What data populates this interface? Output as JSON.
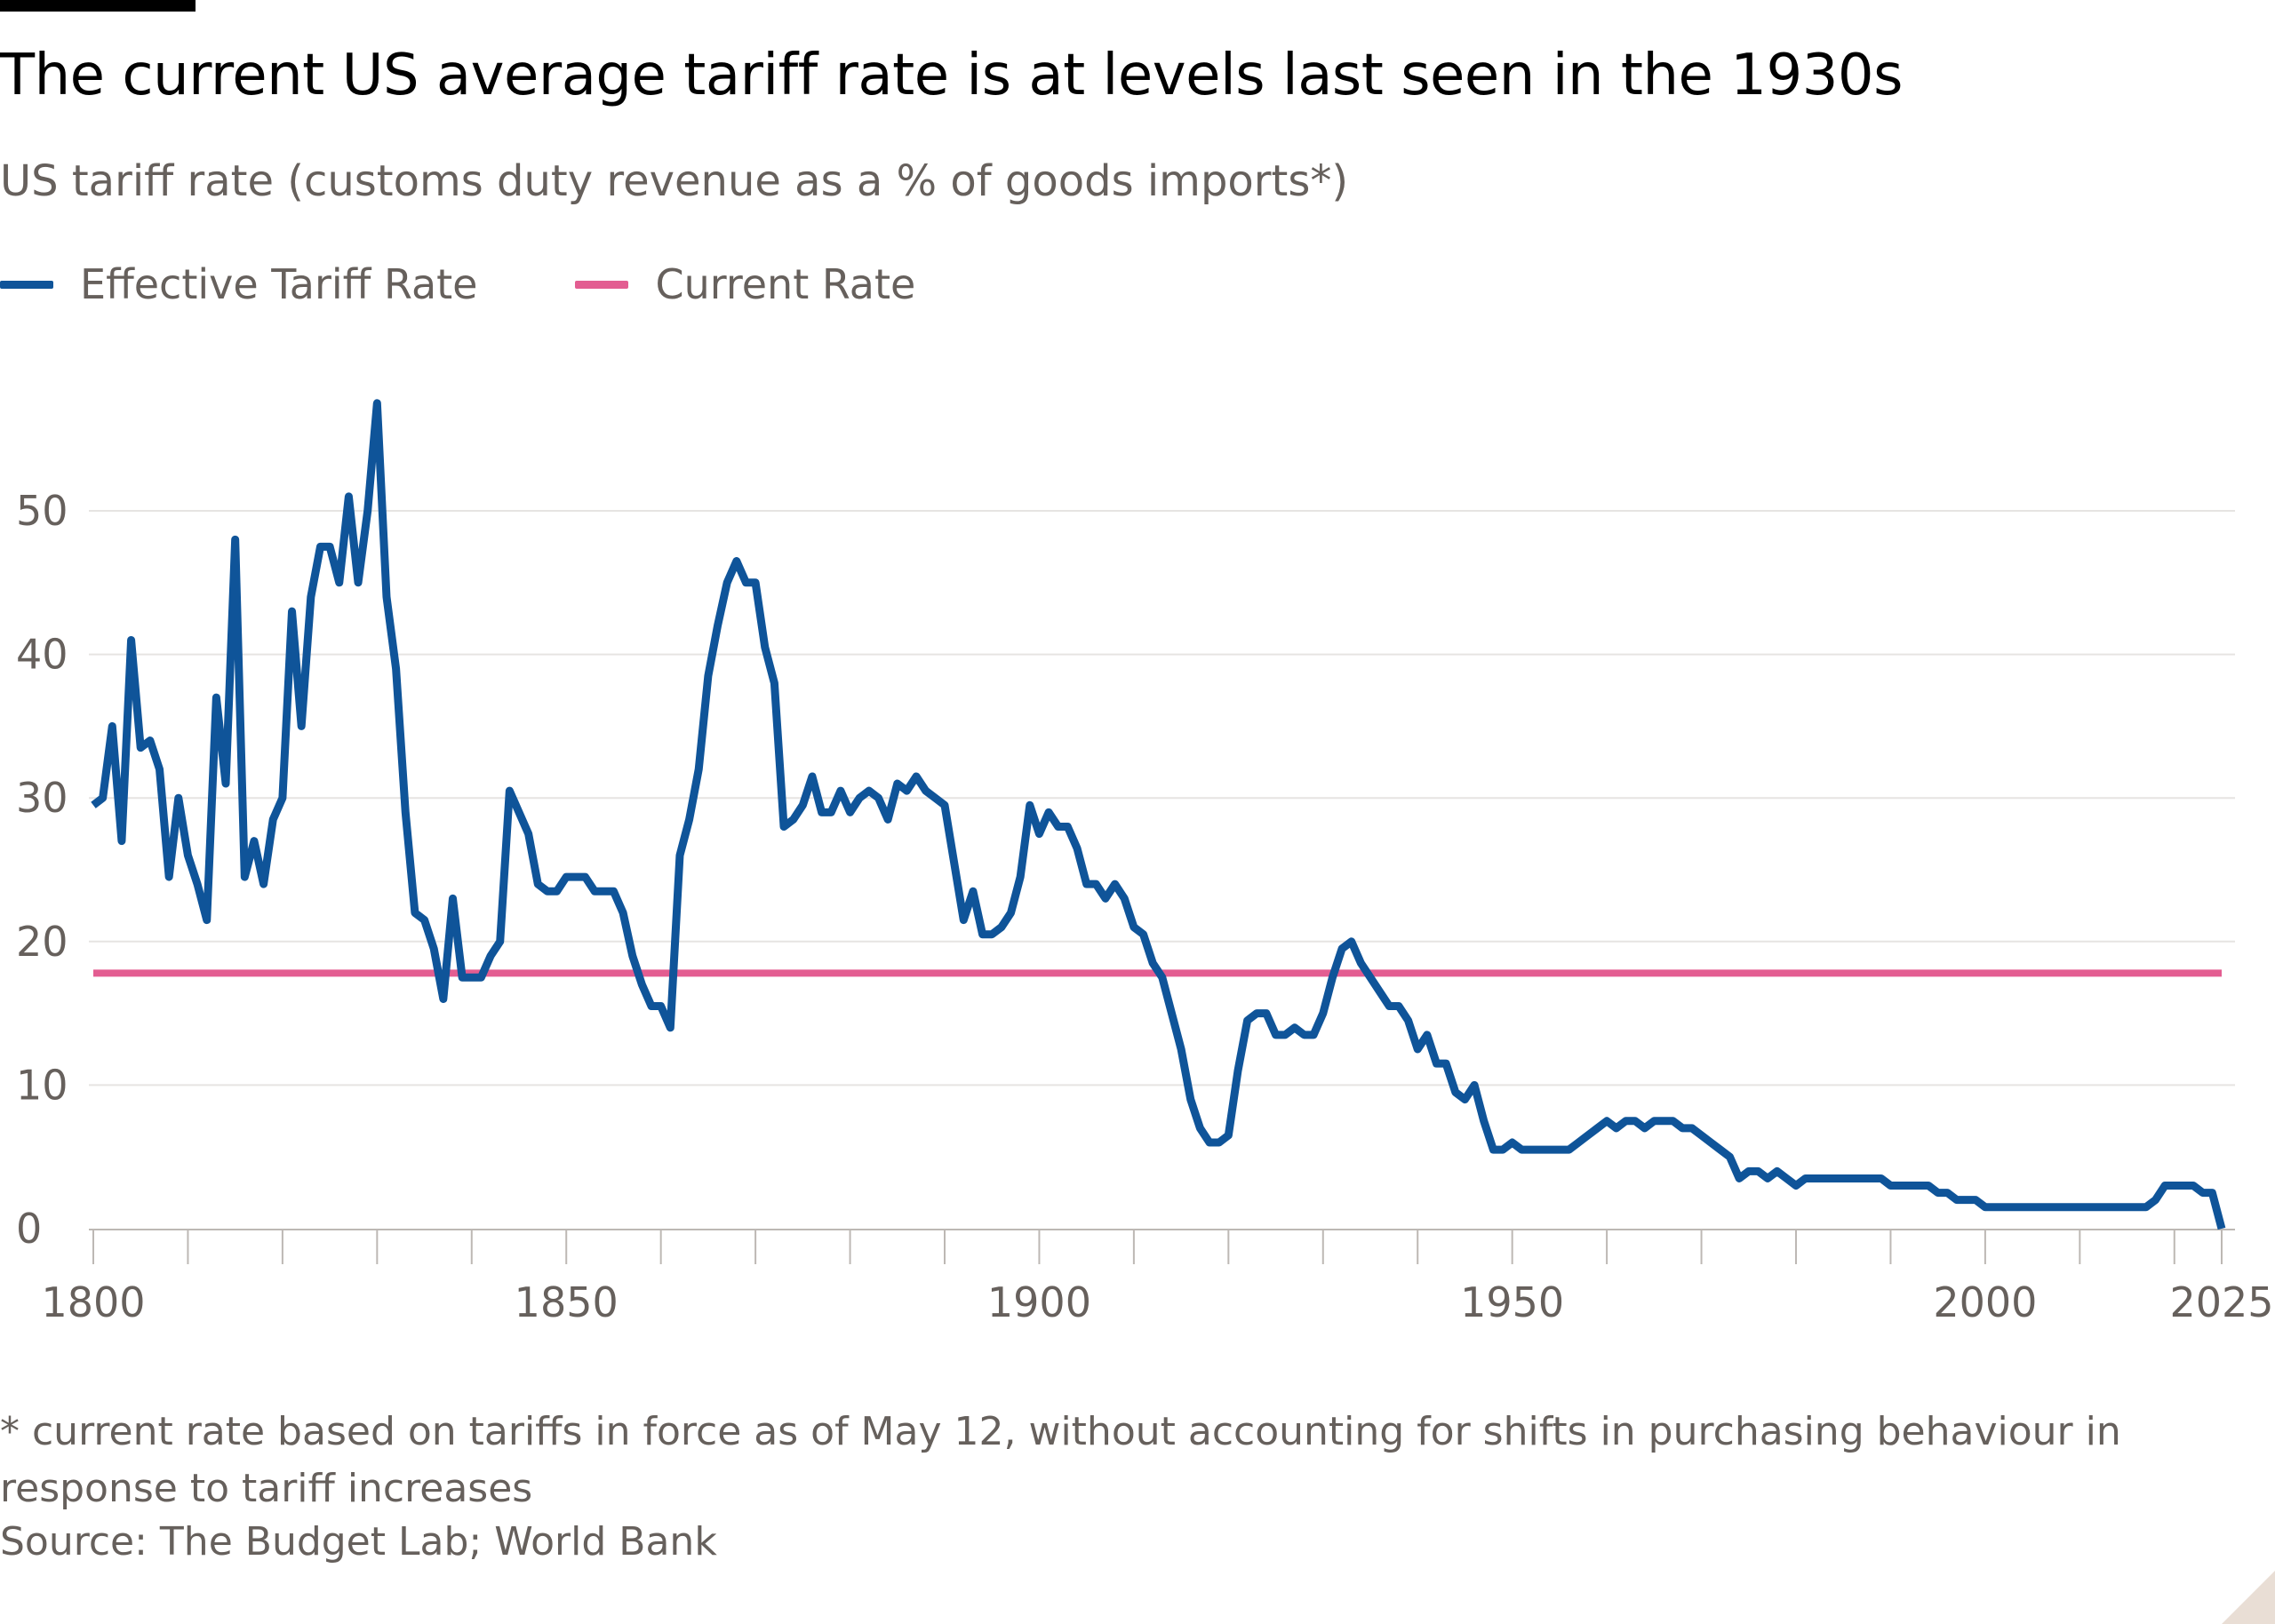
{
  "title": "The current US average tariff rate is at levels last seen in the 1930s",
  "subtitle": "US tariff rate (customs duty revenue as a % of goods imports*)",
  "footnote": "* current rate based on tariffs in force as of May 12, without accounting for shifts in purchasing behaviour in response to tariff increases",
  "source": "Source: The Budget Lab; World Bank",
  "colors": {
    "effective": "#0f5499",
    "current": "#e35d91",
    "grid": "#e6e4e2",
    "axis": "#bdb8b4",
    "text": "#66605c"
  },
  "chart_data": {
    "type": "line",
    "title": "The current US average tariff rate is at levels last seen in the 1930s",
    "ylabel": "US tariff rate (customs duty revenue as a % of goods imports*)",
    "xlim": [
      1800,
      2025
    ],
    "ylim": [
      0,
      57
    ],
    "x_tick_labels": [
      "1800",
      "1850",
      "1900",
      "1950",
      "2000",
      "2025"
    ],
    "x_tick_values": [
      1800,
      1850,
      1900,
      1950,
      2000,
      2025
    ],
    "x_minor_ticks": [
      1800,
      1810,
      1820,
      1830,
      1840,
      1850,
      1860,
      1870,
      1880,
      1890,
      1900,
      1910,
      1920,
      1930,
      1940,
      1950,
      1960,
      1970,
      1980,
      1990,
      2000,
      2010,
      2020,
      2025
    ],
    "y_tick_labels": [
      "0",
      "10",
      "20",
      "30",
      "40",
      "50"
    ],
    "y_tick_values": [
      0,
      10,
      20,
      30,
      40,
      50
    ],
    "grid": true,
    "legend_position": "top-left",
    "series": [
      {
        "name": "Effective Tariff Rate",
        "color": "#0f5499",
        "points": [
          [
            1800,
            29.5
          ],
          [
            1801,
            30
          ],
          [
            1802,
            35
          ],
          [
            1803,
            27
          ],
          [
            1804,
            41
          ],
          [
            1805,
            33.5
          ],
          [
            1806,
            34
          ],
          [
            1807,
            32
          ],
          [
            1808,
            24.5
          ],
          [
            1809,
            30
          ],
          [
            1810,
            26
          ],
          [
            1811,
            24
          ],
          [
            1812,
            21.5
          ],
          [
            1813,
            37
          ],
          [
            1814,
            31
          ],
          [
            1815,
            48
          ],
          [
            1816,
            24.5
          ],
          [
            1817,
            27
          ],
          [
            1818,
            24
          ],
          [
            1819,
            28.5
          ],
          [
            1820,
            30
          ],
          [
            1821,
            43
          ],
          [
            1822,
            35
          ],
          [
            1823,
            44
          ],
          [
            1824,
            47.5
          ],
          [
            1825,
            47.5
          ],
          [
            1826,
            45
          ],
          [
            1827,
            51
          ],
          [
            1828,
            45
          ],
          [
            1829,
            50
          ],
          [
            1830,
            57.5
          ],
          [
            1831,
            44
          ],
          [
            1832,
            39
          ],
          [
            1833,
            29
          ],
          [
            1834,
            22
          ],
          [
            1835,
            21.5
          ],
          [
            1836,
            19.5
          ],
          [
            1837,
            16
          ],
          [
            1838,
            23
          ],
          [
            1839,
            17.5
          ],
          [
            1840,
            17.5
          ],
          [
            1841,
            17.5
          ],
          [
            1842,
            19
          ],
          [
            1843,
            20
          ],
          [
            1844,
            30.5
          ],
          [
            1845,
            29
          ],
          [
            1846,
            27.5
          ],
          [
            1847,
            24
          ],
          [
            1848,
            23.5
          ],
          [
            1849,
            23.5
          ],
          [
            1850,
            24.5
          ],
          [
            1851,
            24.5
          ],
          [
            1852,
            24.5
          ],
          [
            1853,
            23.5
          ],
          [
            1854,
            23.5
          ],
          [
            1855,
            23.5
          ],
          [
            1856,
            22
          ],
          [
            1857,
            19
          ],
          [
            1858,
            17
          ],
          [
            1859,
            15.5
          ],
          [
            1860,
            15.5
          ],
          [
            1861,
            14
          ],
          [
            1862,
            26
          ],
          [
            1863,
            28.5
          ],
          [
            1864,
            32
          ],
          [
            1865,
            38.5
          ],
          [
            1866,
            42
          ],
          [
            1867,
            45
          ],
          [
            1868,
            46.5
          ],
          [
            1869,
            45
          ],
          [
            1870,
            45
          ],
          [
            1871,
            40.5
          ],
          [
            1872,
            38
          ],
          [
            1873,
            28
          ],
          [
            1874,
            28.5
          ],
          [
            1875,
            29.5
          ],
          [
            1876,
            31.5
          ],
          [
            1877,
            29
          ],
          [
            1878,
            29
          ],
          [
            1879,
            30.5
          ],
          [
            1880,
            29
          ],
          [
            1881,
            30
          ],
          [
            1882,
            30.5
          ],
          [
            1883,
            30
          ],
          [
            1884,
            28.5
          ],
          [
            1885,
            31
          ],
          [
            1886,
            30.5
          ],
          [
            1887,
            31.5
          ],
          [
            1888,
            30.5
          ],
          [
            1889,
            30
          ],
          [
            1890,
            29.5
          ],
          [
            1891,
            25.5
          ],
          [
            1892,
            21.5
          ],
          [
            1893,
            23.5
          ],
          [
            1894,
            20.5
          ],
          [
            1895,
            20.5
          ],
          [
            1896,
            21
          ],
          [
            1897,
            22
          ],
          [
            1898,
            24.5
          ],
          [
            1899,
            29.5
          ],
          [
            1900,
            27.5
          ],
          [
            1901,
            29
          ],
          [
            1902,
            28
          ],
          [
            1903,
            28
          ],
          [
            1904,
            26.5
          ],
          [
            1905,
            24
          ],
          [
            1906,
            24
          ],
          [
            1907,
            23
          ],
          [
            1908,
            24
          ],
          [
            1909,
            23
          ],
          [
            1910,
            21
          ],
          [
            1911,
            20.5
          ],
          [
            1912,
            18.5
          ],
          [
            1913,
            17.5
          ],
          [
            1914,
            15
          ],
          [
            1915,
            12.5
          ],
          [
            1916,
            9
          ],
          [
            1917,
            7
          ],
          [
            1918,
            6
          ],
          [
            1919,
            6
          ],
          [
            1920,
            6.5
          ],
          [
            1921,
            11
          ],
          [
            1922,
            14.5
          ],
          [
            1923,
            15
          ],
          [
            1924,
            15
          ],
          [
            1925,
            13.5
          ],
          [
            1926,
            13.5
          ],
          [
            1927,
            14
          ],
          [
            1928,
            13.5
          ],
          [
            1929,
            13.5
          ],
          [
            1930,
            15
          ],
          [
            1931,
            17.5
          ],
          [
            1932,
            19.5
          ],
          [
            1933,
            20
          ],
          [
            1934,
            18.5
          ],
          [
            1935,
            17.5
          ],
          [
            1936,
            16.5
          ],
          [
            1937,
            15.5
          ],
          [
            1938,
            15.5
          ],
          [
            1939,
            14.5
          ],
          [
            1940,
            12.5
          ],
          [
            1941,
            13.5
          ],
          [
            1942,
            11.5
          ],
          [
            1943,
            11.5
          ],
          [
            1944,
            9.5
          ],
          [
            1945,
            9
          ],
          [
            1946,
            10
          ],
          [
            1947,
            7.5
          ],
          [
            1948,
            5.5
          ],
          [
            1949,
            5.5
          ],
          [
            1950,
            6
          ],
          [
            1951,
            5.5
          ],
          [
            1952,
            5.5
          ],
          [
            1953,
            5.5
          ],
          [
            1954,
            5.5
          ],
          [
            1955,
            5.5
          ],
          [
            1956,
            5.5
          ],
          [
            1957,
            6
          ],
          [
            1958,
            6.5
          ],
          [
            1959,
            7
          ],
          [
            1960,
            7.5
          ],
          [
            1961,
            7
          ],
          [
            1962,
            7.5
          ],
          [
            1963,
            7.5
          ],
          [
            1964,
            7
          ],
          [
            1965,
            7.5
          ],
          [
            1966,
            7.5
          ],
          [
            1967,
            7.5
          ],
          [
            1968,
            7
          ],
          [
            1969,
            7
          ],
          [
            1970,
            6.5
          ],
          [
            1971,
            6
          ],
          [
            1972,
            5.5
          ],
          [
            1973,
            5
          ],
          [
            1974,
            3.5
          ],
          [
            1975,
            4
          ],
          [
            1976,
            4
          ],
          [
            1977,
            3.5
          ],
          [
            1978,
            4
          ],
          [
            1979,
            3.5
          ],
          [
            1980,
            3
          ],
          [
            1981,
            3.5
          ],
          [
            1982,
            3.5
          ],
          [
            1983,
            3.5
          ],
          [
            1984,
            3.5
          ],
          [
            1985,
            3.5
          ],
          [
            1986,
            3.5
          ],
          [
            1987,
            3.5
          ],
          [
            1988,
            3.5
          ],
          [
            1989,
            3.5
          ],
          [
            1990,
            3
          ],
          [
            1991,
            3
          ],
          [
            1992,
            3
          ],
          [
            1993,
            3
          ],
          [
            1994,
            3
          ],
          [
            1995,
            2.5
          ],
          [
            1996,
            2.5
          ],
          [
            1997,
            2
          ],
          [
            1998,
            2
          ],
          [
            1999,
            2
          ],
          [
            2000,
            1.5
          ],
          [
            2001,
            1.5
          ],
          [
            2002,
            1.5
          ],
          [
            2003,
            1.5
          ],
          [
            2004,
            1.5
          ],
          [
            2005,
            1.5
          ],
          [
            2006,
            1.5
          ],
          [
            2007,
            1.5
          ],
          [
            2008,
            1.5
          ],
          [
            2009,
            1.5
          ],
          [
            2010,
            1.5
          ],
          [
            2011,
            1.5
          ],
          [
            2012,
            1.5
          ],
          [
            2013,
            1.5
          ],
          [
            2014,
            1.5
          ],
          [
            2015,
            1.5
          ],
          [
            2016,
            1.5
          ],
          [
            2017,
            1.5
          ],
          [
            2018,
            2
          ],
          [
            2019,
            3
          ],
          [
            2020,
            3
          ],
          [
            2021,
            3
          ],
          [
            2022,
            3
          ],
          [
            2023,
            2.5
          ],
          [
            2024,
            2.5
          ],
          [
            2025,
            0
          ]
        ]
      },
      {
        "name": "Current Rate",
        "color": "#e35d91",
        "points": [
          [
            1800,
            17.8
          ],
          [
            2025,
            17.8
          ]
        ]
      }
    ]
  }
}
